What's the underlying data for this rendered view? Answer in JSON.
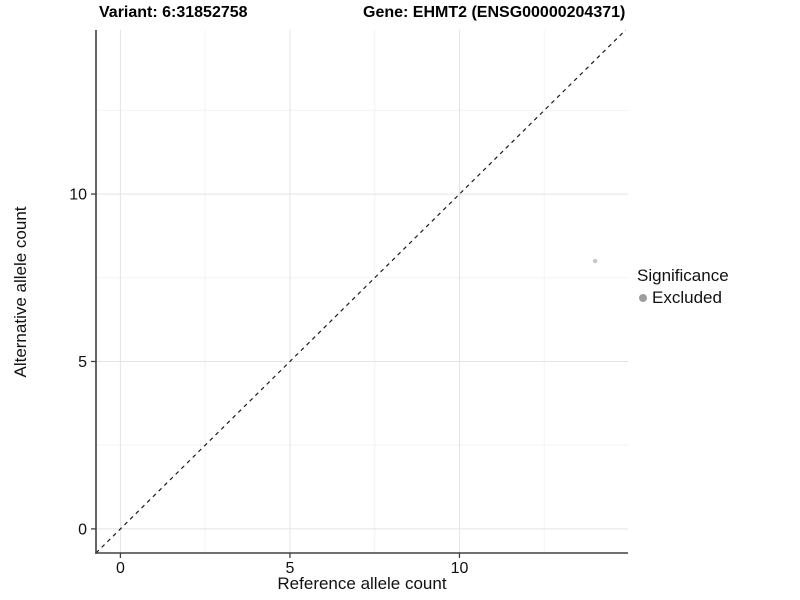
{
  "chart_data": {
    "type": "scatter",
    "title_left": "Variant: 6:31852758",
    "title_right": "Gene: EHMT2 (ENSG00000204371)",
    "xlabel": "Reference allele count",
    "ylabel": "Alternative allele count",
    "x_ticks": [
      0,
      5,
      10
    ],
    "y_ticks": [
      0,
      5,
      10
    ],
    "minor_gridlines": [
      2.5,
      7.5,
      12.5
    ],
    "xlim": [
      -0.72,
      14.97
    ],
    "ylim": [
      -0.72,
      14.9
    ],
    "points": [
      {
        "x": 14,
        "y": 8,
        "significance": "Excluded"
      }
    ],
    "reference_line": {
      "type": "identity",
      "style": "dashed",
      "equation": "y = x"
    },
    "legend": {
      "title": "Significance",
      "position": "right",
      "items": [
        {
          "label": "Excluded",
          "color": "#9e9e9e"
        }
      ]
    },
    "grid": true,
    "colors": {
      "background": "#ffffff",
      "axis": "#404040",
      "text": "#111111",
      "grid_major": "#e4e4e4",
      "grid_minor": "#f3f3f3",
      "reference_line": "#1a1a1a",
      "point": "#c6c6c6"
    }
  }
}
